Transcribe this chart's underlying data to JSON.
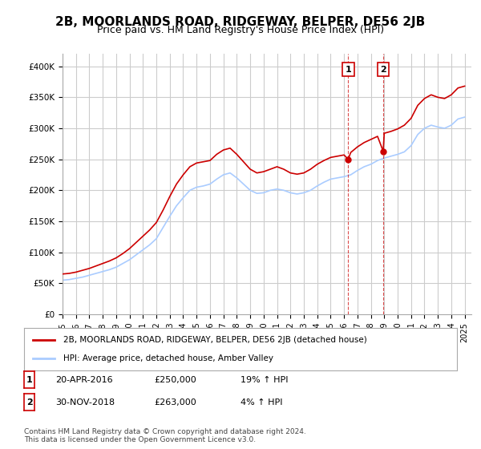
{
  "title": "2B, MOORLANDS ROAD, RIDGEWAY, BELPER, DE56 2JB",
  "subtitle": "Price paid vs. HM Land Registry's House Price Index (HPI)",
  "ylabel": "",
  "xlim_start": 1995.0,
  "xlim_end": 2025.5,
  "ylim": [
    0,
    420000
  ],
  "yticks": [
    0,
    50000,
    100000,
    150000,
    200000,
    250000,
    300000,
    350000,
    400000
  ],
  "ytick_labels": [
    "£0",
    "£50K",
    "£100K",
    "£150K",
    "£200K",
    "£250K",
    "£300K",
    "£350K",
    "£400K"
  ],
  "xticks": [
    1995,
    1996,
    1997,
    1998,
    1999,
    2000,
    2001,
    2002,
    2003,
    2004,
    2005,
    2006,
    2007,
    2008,
    2009,
    2010,
    2011,
    2012,
    2013,
    2014,
    2015,
    2016,
    2017,
    2018,
    2019,
    2020,
    2021,
    2022,
    2023,
    2024,
    2025
  ],
  "background_color": "#ffffff",
  "plot_bg_color": "#ffffff",
  "grid_color": "#cccccc",
  "red_line_color": "#cc0000",
  "blue_line_color": "#aaccff",
  "marker1_x": 2016.31,
  "marker1_y": 250000,
  "marker2_x": 2018.92,
  "marker2_y": 263000,
  "vline1_x": 2016.31,
  "vline2_x": 2018.92,
  "legend_label_red": "2B, MOORLANDS ROAD, RIDGEWAY, BELPER, DE56 2JB (detached house)",
  "legend_label_blue": "HPI: Average price, detached house, Amber Valley",
  "annotation1_label": "1",
  "annotation2_label": "2",
  "table_row1": [
    "1",
    "20-APR-2016",
    "£250,000",
    "19% ↑ HPI"
  ],
  "table_row2": [
    "2",
    "30-NOV-2018",
    "£263,000",
    "4% ↑ HPI"
  ],
  "footer": "Contains HM Land Registry data © Crown copyright and database right 2024.\nThis data is licensed under the Open Government Licence v3.0.",
  "title_fontsize": 11,
  "subtitle_fontsize": 9
}
